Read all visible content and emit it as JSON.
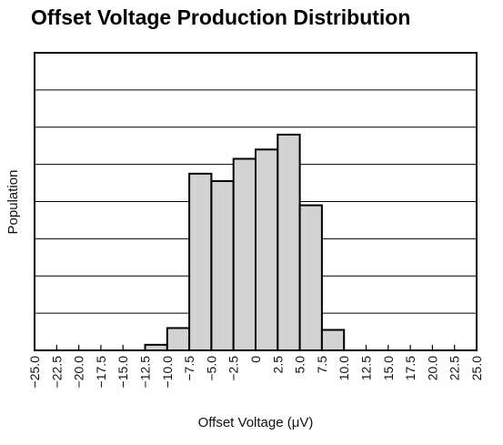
{
  "chart_data": {
    "type": "bar",
    "title": "Offset Voltage Production Distribution",
    "xlabel": "Offset Voltage (μV)",
    "ylabel": "Population",
    "xlim": [
      -25.0,
      25.0
    ],
    "ylim": [
      0,
      8
    ],
    "grid": true,
    "colors": {
      "bar_fill": "#d3d3d3",
      "bar_edge": "#000000",
      "grid": "#000000",
      "frame": "#000000"
    },
    "x_tick_labels": [
      "−25.0",
      "−22.5",
      "−20.0",
      "−17.5",
      "−15.0",
      "−12.5",
      "−10.0",
      "−7.5",
      "−5.0",
      "−2.5",
      "0",
      "2.5",
      "5.0",
      "7.5",
      "10.0",
      "12.5",
      "15.0",
      "17.5",
      "20.0",
      "22.5",
      "25.0"
    ],
    "x_tick_values": [
      -25.0,
      -22.5,
      -20.0,
      -17.5,
      -15.0,
      -12.5,
      -10.0,
      -7.5,
      -5.0,
      -2.5,
      0,
      2.5,
      5.0,
      7.5,
      10.0,
      12.5,
      15.0,
      17.5,
      20.0,
      22.5,
      25.0
    ],
    "bins": [
      {
        "x0": -12.5,
        "x1": -10.0,
        "value": 0.15
      },
      {
        "x0": -10.0,
        "x1": -7.5,
        "value": 0.6
      },
      {
        "x0": -7.5,
        "x1": -5.0,
        "value": 4.75
      },
      {
        "x0": -5.0,
        "x1": -2.5,
        "value": 4.55
      },
      {
        "x0": -2.5,
        "x1": 0,
        "value": 5.15
      },
      {
        "x0": 0,
        "x1": 2.5,
        "value": 5.4
      },
      {
        "x0": 2.5,
        "x1": 5.0,
        "value": 5.8
      },
      {
        "x0": 5.0,
        "x1": 7.5,
        "value": 3.9
      },
      {
        "x0": 7.5,
        "x1": 10.0,
        "value": 0.55
      }
    ]
  }
}
